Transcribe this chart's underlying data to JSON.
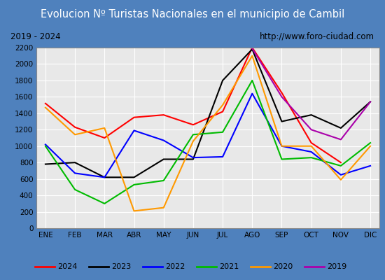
{
  "title": "Evolucion Nº Turistas Nacionales en el municipio de Cambil",
  "subtitle_left": "2019 - 2024",
  "subtitle_right": "http://www.foro-ciudad.com",
  "months": [
    "ENE",
    "FEB",
    "MAR",
    "ABR",
    "MAY",
    "JUN",
    "JUL",
    "AGO",
    "SEP",
    "OCT",
    "NOV",
    "DIC"
  ],
  "series": {
    "2024": [
      1520,
      1230,
      1100,
      1350,
      1380,
      1260,
      1420,
      2200,
      1650,
      1040,
      800,
      null
    ],
    "2023": [
      780,
      800,
      620,
      620,
      840,
      840,
      1800,
      2180,
      1300,
      1380,
      1220,
      1540
    ],
    "2022": [
      1020,
      670,
      620,
      1190,
      1070,
      860,
      870,
      1640,
      1000,
      930,
      650,
      760
    ],
    "2021": [
      1000,
      470,
      300,
      530,
      580,
      1140,
      1170,
      1800,
      840,
      860,
      760,
      1040
    ],
    "2020": [
      1470,
      1140,
      1220,
      210,
      250,
      1060,
      1500,
      2100,
      1000,
      1000,
      590,
      1000
    ],
    "2019": [
      null,
      null,
      null,
      null,
      null,
      null,
      null,
      2190,
      1600,
      1200,
      1080,
      1540
    ]
  },
  "colors": {
    "2024": "#ff0000",
    "2023": "#000000",
    "2022": "#0000ff",
    "2021": "#00bb00",
    "2020": "#ff9900",
    "2019": "#aa00aa"
  },
  "ylim": [
    0,
    2200
  ],
  "yticks": [
    0,
    200,
    400,
    600,
    800,
    1000,
    1200,
    1400,
    1600,
    1800,
    2000,
    2200
  ],
  "title_bg_color": "#4f81bd",
  "title_text_color": "#ffffff",
  "plot_bg_color": "#e8e8e8",
  "outer_bg_color": "#4f81bd",
  "grid_color": "#ffffff",
  "subtitle_bg_color": "#d8d8d8",
  "legend_bg_color": "#f0f0f0"
}
